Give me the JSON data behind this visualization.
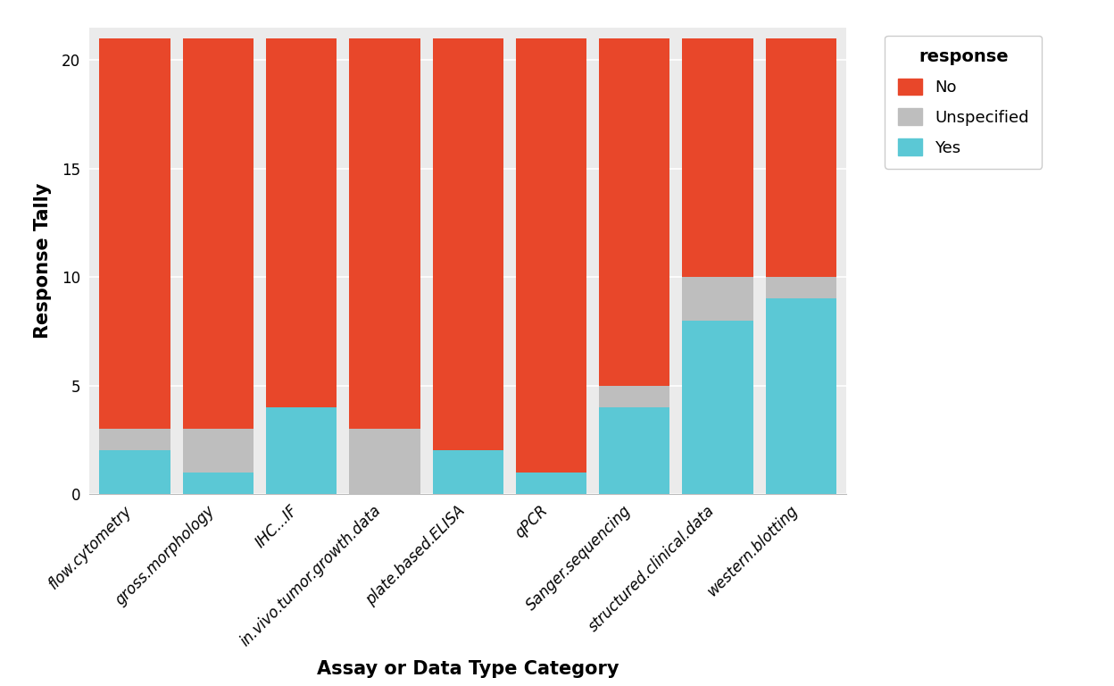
{
  "categories": [
    "flow.cytometry",
    "gross.morphology",
    "IHC...IF",
    "in.vivo.tumor.growth.data",
    "plate.based.ELISA",
    "qPCR",
    "Sanger.sequencing",
    "structured.clinical.data",
    "western.blotting"
  ],
  "yes_values": [
    2,
    1,
    4,
    0,
    2,
    1,
    4,
    8,
    9
  ],
  "unspecified_values": [
    1,
    2,
    0,
    3,
    0,
    0,
    1,
    2,
    1
  ],
  "no_values": [
    18,
    18,
    17,
    18,
    19,
    20,
    16,
    11,
    11
  ],
  "color_yes": "#5BC8D5",
  "color_unspecified": "#BEBEBE",
  "color_no": "#E8472A",
  "xlabel": "Assay or Data Type Category",
  "ylabel": "Response Tally",
  "legend_title": "response",
  "ylim": [
    0,
    21.5
  ],
  "yticks": [
    0,
    5,
    10,
    15,
    20
  ],
  "background_color": "#FFFFFF",
  "panel_background": "#EBEBEB",
  "grid_color": "#FFFFFF",
  "bar_width": 0.85,
  "axis_label_fontsize": 15,
  "tick_fontsize": 12,
  "legend_fontsize": 13,
  "legend_title_fontsize": 14
}
